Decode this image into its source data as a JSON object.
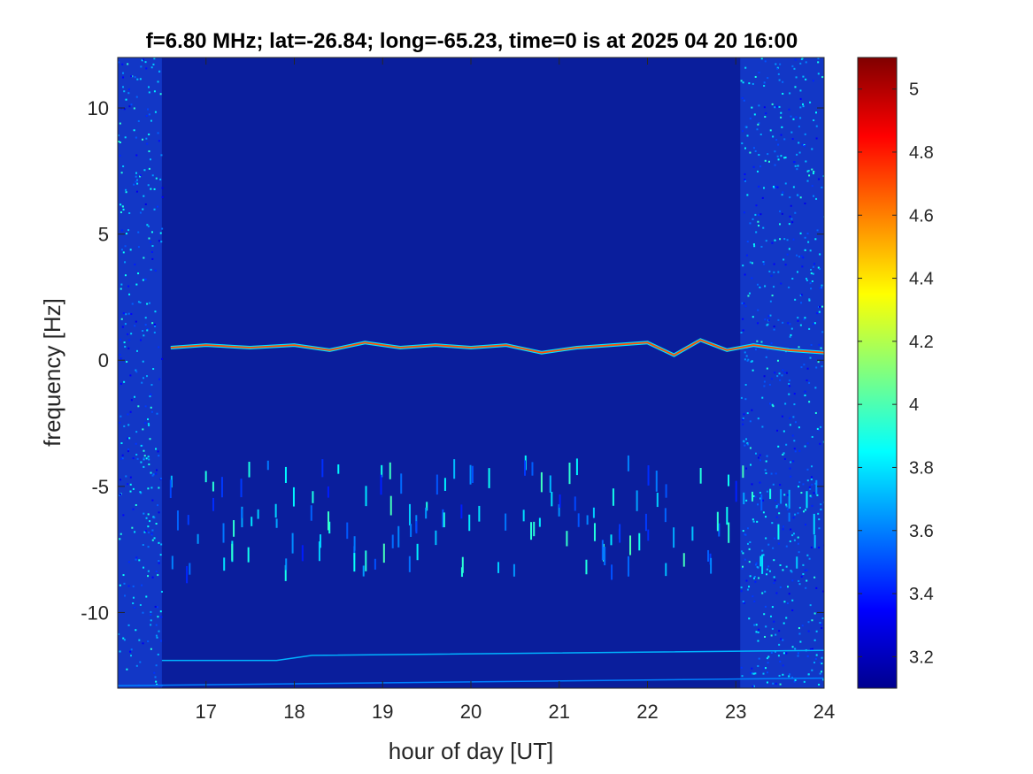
{
  "chart_data": {
    "type": "heatmap",
    "title": "f=6.80 MHz;  lat=-26.84; long=-65.23, time=0 is at 2025 04 20 16:00",
    "xlabel": "hour of day [UT]",
    "ylabel": "frequency [Hz]",
    "xlim": [
      16.0,
      24.0
    ],
    "ylim": [
      -13.0,
      12.0
    ],
    "xticks": [
      17,
      18,
      19,
      20,
      21,
      22,
      23,
      24
    ],
    "xtick_labels": [
      "17",
      "18",
      "19",
      "20",
      "21",
      "22",
      "23",
      "24"
    ],
    "yticks": [
      10,
      5,
      0,
      -5,
      -10
    ],
    "ytick_labels": [
      "10",
      "5",
      "0",
      "-5",
      "-10"
    ],
    "colormap": "jet",
    "clim": [
      3.1,
      5.1
    ],
    "colorbar_ticks": [
      5,
      4.8,
      4.6,
      4.4,
      4.2,
      4,
      3.8,
      3.6,
      3.4,
      3.2
    ],
    "colorbar_tick_labels": [
      "5",
      "4.8",
      "4.6",
      "4.4",
      "4.2",
      "4",
      "3.8",
      "3.6",
      "3.4",
      "3.2"
    ],
    "background_level": 3.15,
    "noisy_time_ranges": [
      [
        16.0,
        16.5
      ],
      [
        23.05,
        24.0
      ]
    ],
    "doppler_trace": {
      "x": [
        16.6,
        17.0,
        17.5,
        18.0,
        18.4,
        18.8,
        19.2,
        19.6,
        20.0,
        20.4,
        20.8,
        21.2,
        21.6,
        22.0,
        22.3,
        22.6,
        22.9,
        23.2,
        23.6,
        24.0
      ],
      "y": [
        0.5,
        0.6,
        0.5,
        0.6,
        0.4,
        0.7,
        0.5,
        0.6,
        0.5,
        0.6,
        0.3,
        0.5,
        0.6,
        0.7,
        0.2,
        0.8,
        0.4,
        0.6,
        0.4,
        0.3
      ],
      "peak_value": 4.7
    },
    "lower_traces": [
      {
        "x": [
          16.5,
          17.8,
          18.2,
          24.0
        ],
        "y": [
          -11.9,
          -11.9,
          -11.7,
          -11.5
        ],
        "value": 3.7
      },
      {
        "x": [
          16.0,
          24.0
        ],
        "y": [
          -12.9,
          -12.6
        ],
        "value": 3.6
      }
    ],
    "spike_band_frequency_range": [
      -8.5,
      -4.0
    ]
  }
}
